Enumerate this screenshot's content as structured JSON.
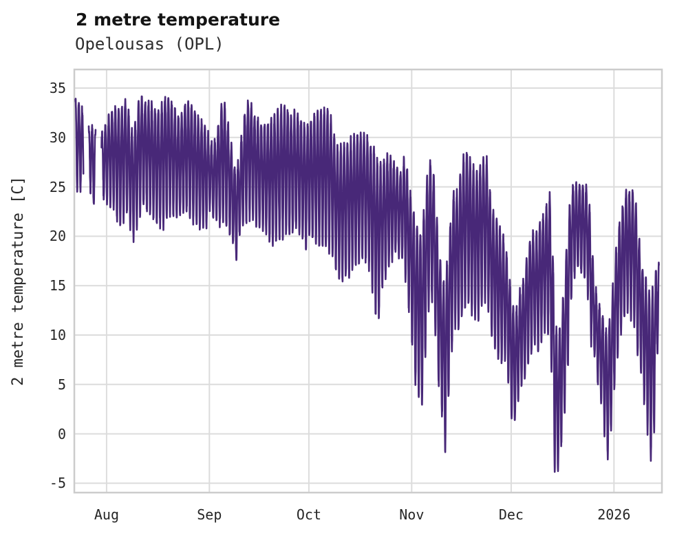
{
  "header": {
    "title": "2 metre temperature",
    "subtitle": "Opelousas (OPL)"
  },
  "chart_data": {
    "type": "line",
    "title": "2 metre temperature",
    "subtitle": "Opelousas (OPL)",
    "xlabel": "",
    "ylabel": "2 metre temperature [C]",
    "series_name": "2 metre temperature",
    "sampling": "hourly",
    "grid": true,
    "legend": false,
    "line_color": "#482878",
    "grid_color": "#dcdcdc",
    "spine_color": "#cccccc",
    "background_color": "#ffffff",
    "y_ticks": [
      35,
      30,
      25,
      20,
      15,
      10,
      5,
      0,
      -5
    ],
    "ylim": [
      -5.95,
      36.88
    ],
    "x_tick_labels": [
      "Aug",
      "Sep",
      "Oct",
      "Nov",
      "Dec",
      "2026"
    ],
    "x_tick_days": [
      10,
      41,
      71,
      102,
      132,
      163
    ],
    "x_start_date": "2025-07-22",
    "x_end_date": "2026-01-15",
    "xlim_days": [
      0.26,
      177.46
    ],
    "segments_days": [
      [
        0.55,
        3.0
      ],
      [
        4.62,
        6.67
      ],
      [
        8.42,
        176.58
      ]
    ],
    "gaps_days": [
      [
        3.0,
        4.62
      ],
      [
        6.67,
        8.42
      ]
    ],
    "diurnal": {
      "hour_of_max": 15,
      "hour_of_min": 3,
      "noise_amplitude_C": 0.45
    },
    "daily_envelope_note": "control points [day_offset_from_2025-07-22, daily_max_C, daily_min_C] read from the plotted line",
    "daily_envelope": [
      [
        0,
        34.5,
        26.8
      ],
      [
        1,
        33.8,
        25.4
      ],
      [
        2,
        33.6,
        25.2
      ],
      [
        3,
        33.2,
        25.5
      ],
      [
        4.6,
        31.2,
        27.0
      ],
      [
        5,
        31.6,
        25.3
      ],
      [
        6,
        31.2,
        23.2
      ],
      [
        6.7,
        30.8,
        24.0
      ],
      [
        8.4,
        30.4,
        24.5
      ],
      [
        9,
        30.8,
        24.2
      ],
      [
        10,
        31.8,
        24.0
      ],
      [
        12,
        33.6,
        23.3
      ],
      [
        14,
        33.2,
        21.3
      ],
      [
        16,
        34.3,
        23.0
      ],
      [
        18,
        30.6,
        20.2
      ],
      [
        20,
        34.8,
        22.6
      ],
      [
        21,
        34.2,
        23.5
      ],
      [
        23,
        34.3,
        23.0
      ],
      [
        25,
        33.0,
        21.8
      ],
      [
        27,
        34.2,
        21.6
      ],
      [
        28,
        35.0,
        22.2
      ],
      [
        29,
        34.6,
        22.8
      ],
      [
        30,
        33.6,
        22.6
      ],
      [
        32,
        32.4,
        22.4
      ],
      [
        34,
        34.2,
        23.0
      ],
      [
        36,
        33.8,
        22.2
      ],
      [
        38,
        32.4,
        21.4
      ],
      [
        40,
        31.4,
        21.2
      ],
      [
        41,
        30.2,
        23.3
      ],
      [
        42,
        29.4,
        22.4
      ],
      [
        43,
        30.6,
        22.0
      ],
      [
        44,
        32.4,
        21.6
      ],
      [
        45,
        34.6,
        22.0
      ],
      [
        46,
        33.4,
        21.4
      ],
      [
        47,
        31.0,
        20.8
      ],
      [
        48,
        28.6,
        19.8
      ],
      [
        49,
        26.6,
        17.9
      ],
      [
        50,
        28.6,
        20.4
      ],
      [
        51,
        31.2,
        21.4
      ],
      [
        52,
        34.0,
        22.0
      ],
      [
        53,
        34.6,
        22.4
      ],
      [
        54,
        33.4,
        22.4
      ],
      [
        56,
        32.0,
        21.4
      ],
      [
        58,
        31.6,
        20.6
      ],
      [
        60,
        32.6,
        19.8
      ],
      [
        62,
        33.4,
        20.4
      ],
      [
        64,
        33.9,
        21.0
      ],
      [
        66,
        32.4,
        20.8
      ],
      [
        67,
        33.4,
        21.4
      ],
      [
        69,
        32.2,
        20.4
      ],
      [
        70,
        31.6,
        19.4
      ],
      [
        71,
        32.0,
        20.4
      ],
      [
        73,
        33.0,
        20.0
      ],
      [
        75,
        33.4,
        19.6
      ],
      [
        77,
        33.7,
        19.4
      ],
      [
        78,
        32.0,
        18.6
      ],
      [
        79,
        30.4,
        17.4
      ],
      [
        80,
        29.6,
        16.5
      ],
      [
        81,
        29.8,
        16.1
      ],
      [
        83,
        30.2,
        16.8
      ],
      [
        85,
        30.8,
        17.4
      ],
      [
        87,
        31.2,
        18.4
      ],
      [
        89,
        30.4,
        17.8
      ],
      [
        91,
        29.2,
        13.0
      ],
      [
        92,
        28.2,
        12.1
      ],
      [
        93,
        27.8,
        15.2
      ],
      [
        95,
        28.9,
        17.4
      ],
      [
        97,
        27.6,
        18.6
      ],
      [
        99,
        26.4,
        18.4
      ],
      [
        100,
        29.3,
        16.8
      ],
      [
        101,
        26.0,
        13.5
      ],
      [
        102,
        24.4,
        10.4
      ],
      [
        103,
        22.6,
        6.3
      ],
      [
        104,
        21.6,
        4.8
      ],
      [
        105,
        20.6,
        3.4
      ],
      [
        106,
        24.6,
        8.0
      ],
      [
        107,
        28.0,
        13.2
      ],
      [
        108,
        28.3,
        14.5
      ],
      [
        109,
        26.0,
        11.5
      ],
      [
        110,
        20.2,
        6.0
      ],
      [
        111,
        17.0,
        3.0
      ],
      [
        112,
        15.6,
        -1.3
      ],
      [
        113,
        19.2,
        3.6
      ],
      [
        114,
        23.6,
        8.6
      ],
      [
        115,
        25.9,
        11.8
      ],
      [
        116,
        24.6,
        11.0
      ],
      [
        117,
        28.1,
        12.4
      ],
      [
        118,
        29.0,
        13.4
      ],
      [
        119,
        29.6,
        14.0
      ],
      [
        120,
        28.0,
        13.0
      ],
      [
        121,
        27.6,
        12.4
      ],
      [
        122,
        27.3,
        12.0
      ],
      [
        123,
        28.0,
        13.8
      ],
      [
        124,
        28.6,
        14.4
      ],
      [
        125,
        28.5,
        13.4
      ],
      [
        126,
        23.2,
        10.8
      ],
      [
        127,
        22.9,
        9.4
      ],
      [
        128,
        22.0,
        8.2
      ],
      [
        129,
        21.0,
        7.8
      ],
      [
        130,
        20.2,
        8.4
      ],
      [
        131,
        18.0,
        6.4
      ],
      [
        132,
        14.6,
        2.4
      ],
      [
        133,
        12.6,
        1.2
      ],
      [
        134,
        13.6,
        4.0
      ],
      [
        135,
        15.6,
        5.4
      ],
      [
        136,
        16.6,
        6.0
      ],
      [
        137,
        19.0,
        7.4
      ],
      [
        138,
        21.2,
        8.6
      ],
      [
        139,
        21.0,
        9.7
      ],
      [
        140,
        20.6,
        9.0
      ],
      [
        141,
        22.7,
        10.0
      ],
      [
        142,
        22.4,
        11.0
      ],
      [
        143,
        24.4,
        11.4
      ],
      [
        144,
        25.0,
        9.0
      ],
      [
        145,
        14.0,
        -2.6
      ],
      [
        146,
        9.6,
        -3.7
      ],
      [
        147,
        12.0,
        -0.8
      ],
      [
        148,
        16.0,
        2.2
      ],
      [
        149,
        21.0,
        6.5
      ],
      [
        150,
        25.3,
        13.8
      ],
      [
        151,
        25.8,
        16.4
      ],
      [
        152,
        25.5,
        17.0
      ],
      [
        153,
        25.9,
        16.8
      ],
      [
        154,
        25.2,
        16.1
      ],
      [
        155,
        25.9,
        14.8
      ],
      [
        156,
        22.0,
        10.0
      ],
      [
        157,
        16.0,
        8.4
      ],
      [
        158,
        14.1,
        6.0
      ],
      [
        159,
        13.0,
        4.0
      ],
      [
        160,
        12.0,
        1.0
      ],
      [
        161,
        10.2,
        -2.0
      ],
      [
        162,
        13.0,
        0.6
      ],
      [
        163,
        17.0,
        5.0
      ],
      [
        164,
        20.6,
        8.0
      ],
      [
        165,
        22.9,
        10.4
      ],
      [
        166,
        24.6,
        12.0
      ],
      [
        167,
        25.5,
        13.0
      ],
      [
        168,
        24.9,
        12.4
      ],
      [
        169,
        25.3,
        12.0
      ],
      [
        170,
        23.0,
        9.0
      ],
      [
        171,
        18.6,
        7.4
      ],
      [
        172,
        17.0,
        4.0
      ],
      [
        173,
        15.6,
        1.4
      ],
      [
        174,
        14.6,
        -2.1
      ],
      [
        175,
        15.8,
        0.3
      ],
      [
        176,
        17.8,
        8.0
      ],
      [
        176.7,
        18.2,
        12.0
      ]
    ]
  }
}
